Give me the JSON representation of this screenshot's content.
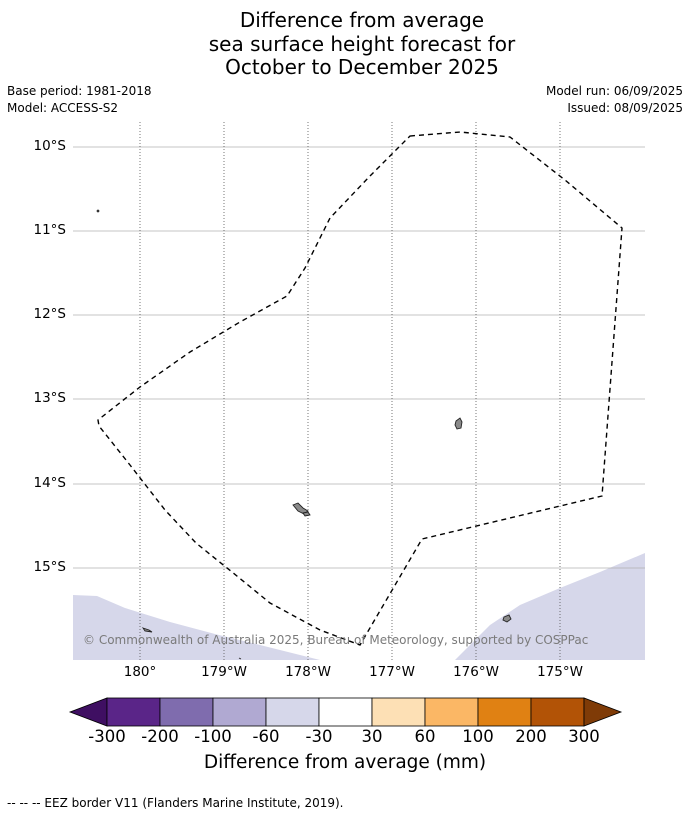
{
  "header": {
    "title_lines": [
      "Difference from average",
      "sea surface height forecast for",
      "October to December 2025"
    ],
    "base_period": "Base period: 1981-2018",
    "model": "Model: ACCESS-S2",
    "model_run": "Model run: 06/09/2025",
    "issued": "Issued: 08/09/2025"
  },
  "map": {
    "lat_labels": [
      "10°S",
      "11°S",
      "12°S",
      "13°S",
      "14°S",
      "15°S"
    ],
    "lon_labels": [
      "180°",
      "179°W",
      "178°W",
      "177°W",
      "176°W",
      "175°W"
    ],
    "copyright": "© Commonwealth of Australia 2025, Bureau of Meteorology, supported by COSPPac",
    "colors": {
      "land": "#8a8a8a",
      "ocean_anomaly": "#d6d7ea",
      "gridline": "#b0b0b0",
      "eez_border": "#000000"
    }
  },
  "colorbar": {
    "tick_labels": [
      "-300",
      "-200",
      "-100",
      "-60",
      "-30",
      "30",
      "60",
      "100",
      "200",
      "300"
    ],
    "title": "Difference from average (mm)",
    "colors": [
      "#3f0f62",
      "#5a2588",
      "#7f6cae",
      "#b0a9d2",
      "#d6d7ea",
      "#ffffff",
      "#fde0b5",
      "#fbb765",
      "#e08113",
      "#b25306",
      "#7f3b07"
    ]
  },
  "footnote": "--  --  -- EEZ border V11 (Flanders Marine Institute, 2019)."
}
